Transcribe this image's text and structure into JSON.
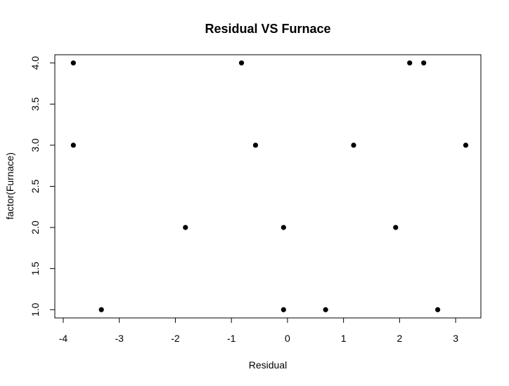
{
  "chart_data": {
    "type": "scatter",
    "title": "Residual VS Furnace",
    "xlabel": "Residual",
    "ylabel": "factor(Furnace)",
    "xlim": [
      -4.15,
      3.45
    ],
    "ylim": [
      0.9,
      4.1
    ],
    "x_ticks": [
      -4,
      -3,
      -2,
      -1,
      0,
      1,
      2,
      3
    ],
    "x_tick_labels": [
      "-4",
      "-3",
      "-2",
      "-1",
      "0",
      "1",
      "2",
      "3"
    ],
    "y_ticks": [
      1.0,
      1.5,
      2.0,
      2.5,
      3.0,
      3.5,
      4.0
    ],
    "y_tick_labels": [
      "1.0",
      "1.5",
      "2.0",
      "2.5",
      "3.0",
      "3.5",
      "4.0"
    ],
    "grid": false,
    "marker_color": "#000000",
    "points": [
      {
        "x": -3.82,
        "y": 4.0
      },
      {
        "x": -3.82,
        "y": 3.0
      },
      {
        "x": -3.32,
        "y": 1.0
      },
      {
        "x": -1.82,
        "y": 2.0
      },
      {
        "x": -0.82,
        "y": 4.0
      },
      {
        "x": -0.57,
        "y": 3.0
      },
      {
        "x": -0.07,
        "y": 2.0
      },
      {
        "x": -0.07,
        "y": 1.0
      },
      {
        "x": 0.68,
        "y": 1.0
      },
      {
        "x": 1.18,
        "y": 3.0
      },
      {
        "x": 1.93,
        "y": 2.0
      },
      {
        "x": 2.18,
        "y": 4.0
      },
      {
        "x": 2.43,
        "y": 4.0
      },
      {
        "x": 2.68,
        "y": 1.0
      },
      {
        "x": 3.18,
        "y": 3.0
      }
    ]
  }
}
